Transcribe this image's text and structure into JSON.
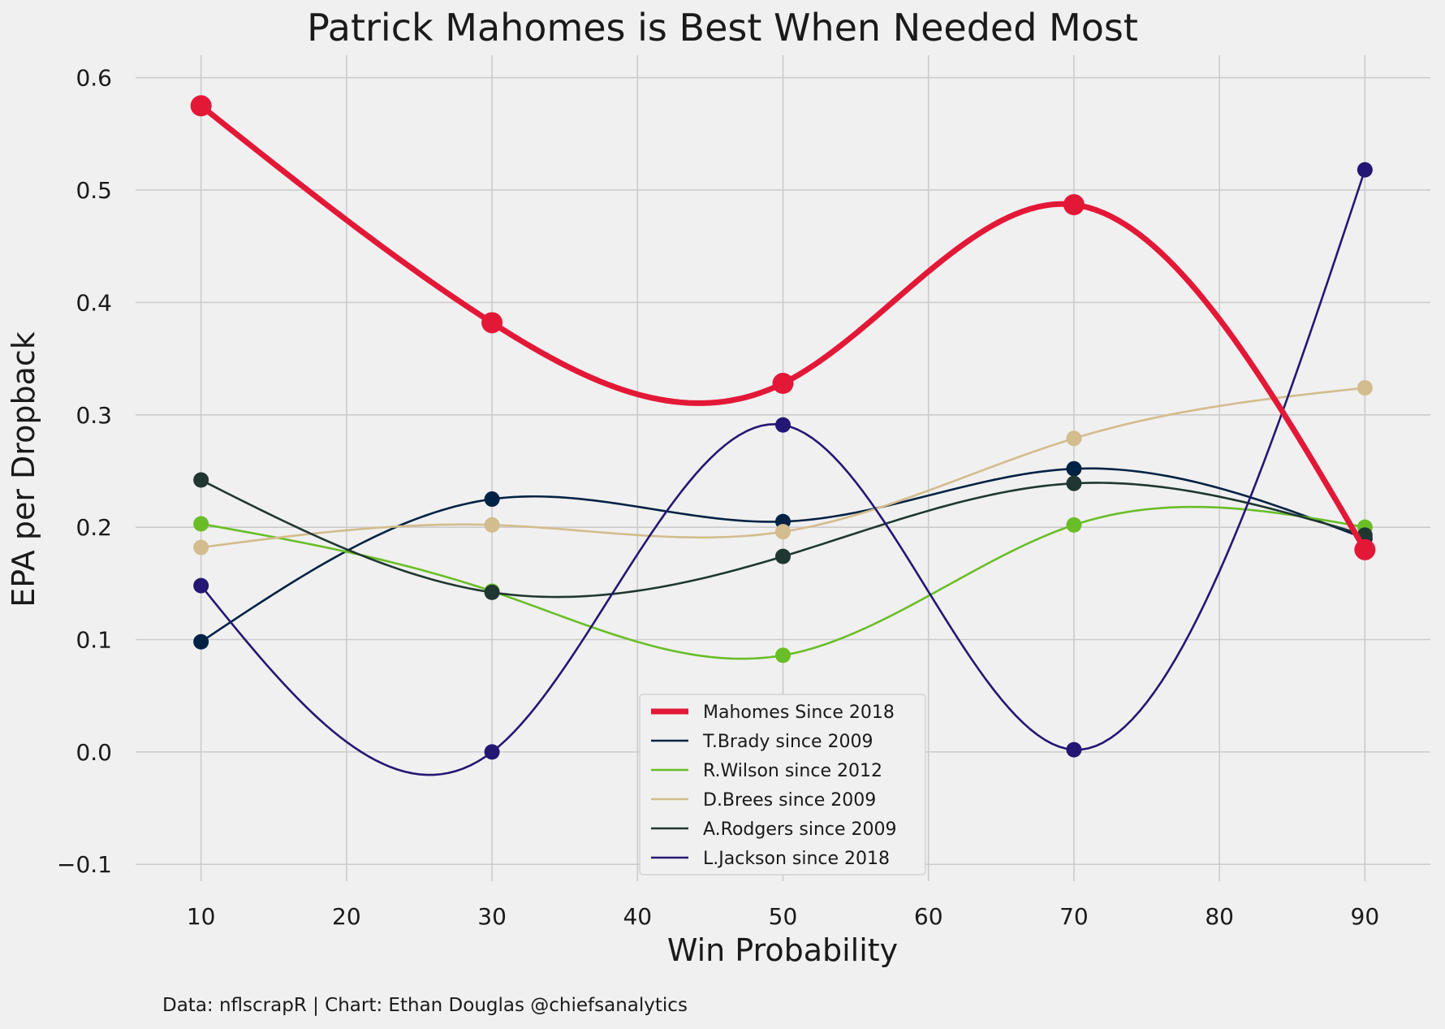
{
  "chart_data": {
    "type": "line",
    "title": "Patrick Mahomes is Best When Needed Most",
    "xlabel": "Win Probability",
    "ylabel": "EPA per Dropback",
    "caption": "Data: nflscrapR | Chart: Ethan Douglas @chiefsanalytics",
    "xlim": [
      5.5,
      94.5
    ],
    "ylim": [
      -0.115,
      0.62
    ],
    "xticks": [
      10,
      20,
      30,
      40,
      50,
      60,
      70,
      80,
      90
    ],
    "yticks": [
      -0.1,
      0.0,
      0.1,
      0.2,
      0.3,
      0.4,
      0.5,
      0.6
    ],
    "ytick_labels": [
      "−0.1",
      "0.0",
      "0.1",
      "0.2",
      "0.3",
      "0.4",
      "0.5",
      "0.6"
    ],
    "grid": true,
    "legend_position": "bottom-center",
    "x": [
      10,
      30,
      50,
      70,
      90
    ],
    "series": [
      {
        "name": "Mahomes Since 2018",
        "color": "#e31837",
        "values": [
          0.575,
          0.382,
          0.328,
          0.487,
          0.18
        ]
      },
      {
        "name": "T.Brady since 2009",
        "color": "#002244",
        "values": [
          0.098,
          0.225,
          0.205,
          0.252,
          0.19
        ]
      },
      {
        "name": "R.Wilson since 2012",
        "color": "#69be28",
        "values": [
          0.203,
          0.143,
          0.086,
          0.202,
          0.2
        ]
      },
      {
        "name": "D.Brees since 2009",
        "color": "#d3bc8d",
        "values": [
          0.182,
          0.202,
          0.196,
          0.279,
          0.324
        ]
      },
      {
        "name": "A.Rodgers since 2009",
        "color": "#203731",
        "values": [
          0.242,
          0.142,
          0.174,
          0.239,
          0.193
        ]
      },
      {
        "name": "L.Jackson since 2018",
        "color": "#241773",
        "values": [
          0.148,
          0.0,
          0.291,
          0.002,
          0.518
        ]
      }
    ]
  }
}
